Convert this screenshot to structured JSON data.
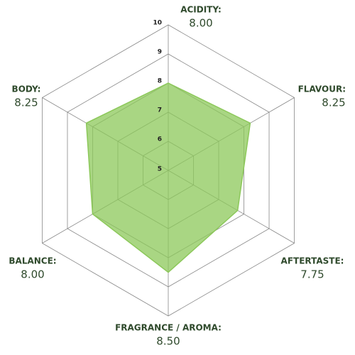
{
  "chart_data": {
    "type": "radar",
    "categories": [
      "ACIDITY:",
      "FLAVOUR:",
      "AFTERTASTE:",
      "FRAGRANCE / AROMA:",
      "BALANCE:",
      "BODY:"
    ],
    "values": [
      8,
      8.25,
      7.75,
      8.5,
      8,
      8.25
    ],
    "value_labels": [
      "8.00",
      "8.25",
      "7.75",
      "8.50",
      "8.00",
      "8.25"
    ],
    "rlim": [
      5,
      10
    ],
    "rticks": [
      5,
      6,
      7,
      8,
      9,
      10
    ],
    "color": "#8cc85a"
  }
}
